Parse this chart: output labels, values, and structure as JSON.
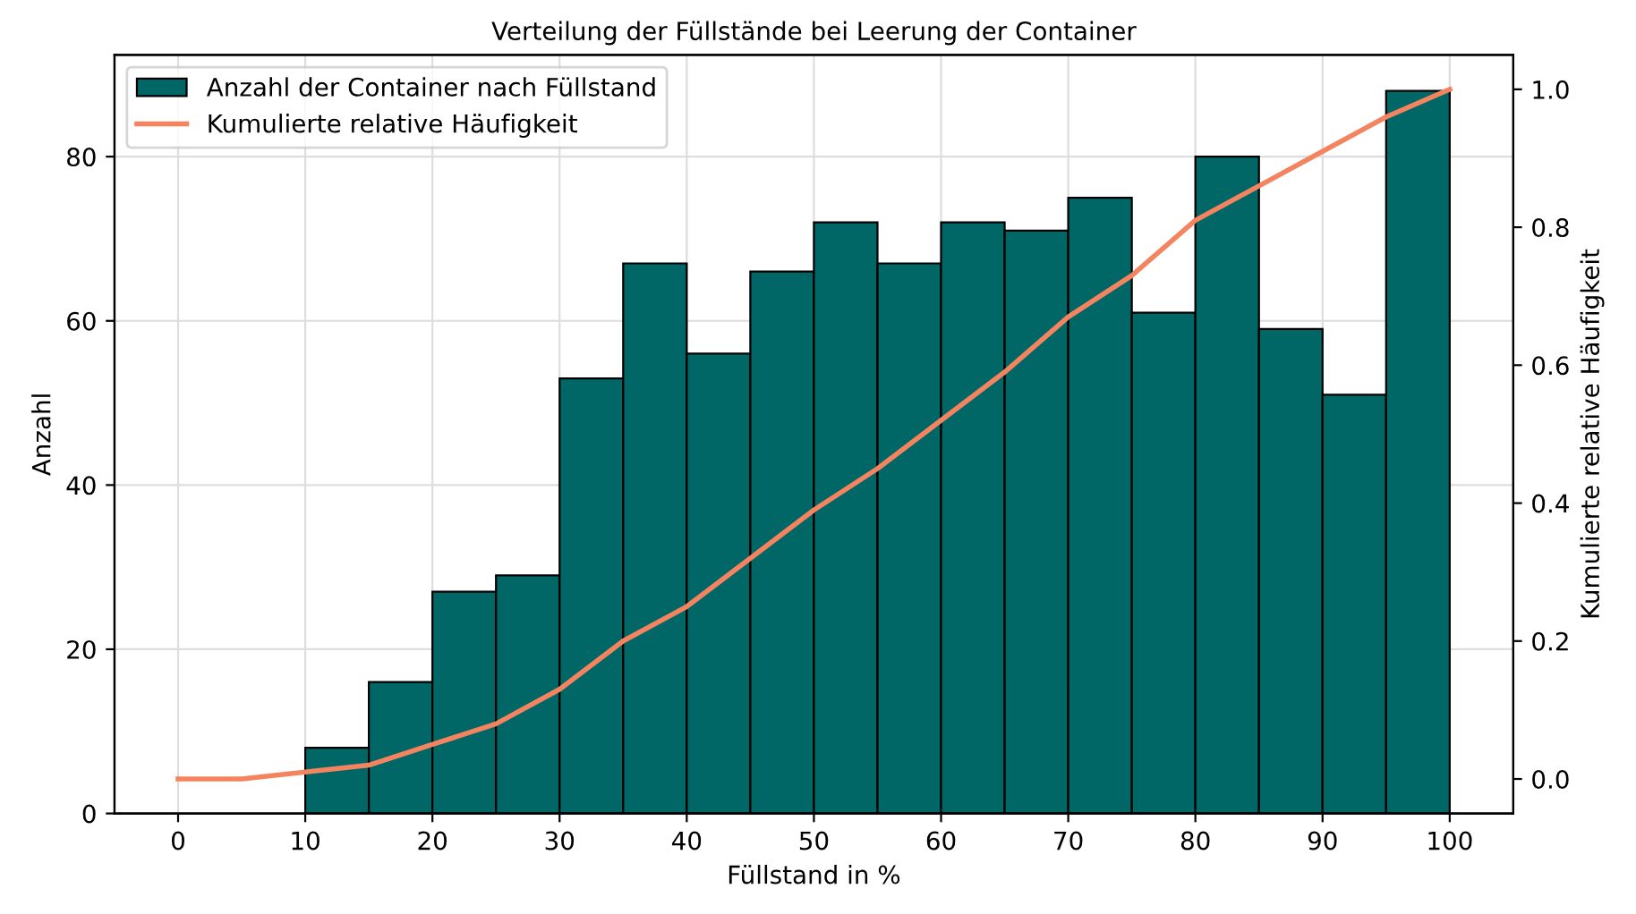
{
  "chart_data": {
    "type": "histogram",
    "title": "Verteilung der Füllstände bei Leerung der Container",
    "xlabel": "Füllstand in %",
    "ylabel": "Anzahl",
    "y2label": "Kumulierte relative Häufigkeit",
    "series": [
      {
        "type": "histogram",
        "name": "Anzahl der Container nach Füllstand",
        "color": "#006666",
        "bins": [
          10,
          15,
          20,
          25,
          30,
          35,
          40,
          45,
          50,
          55,
          60,
          65,
          70,
          75,
          80,
          85,
          90,
          95,
          100
        ],
        "values": [
          8,
          16,
          27,
          29,
          53,
          67,
          56,
          66,
          72,
          67,
          72,
          71,
          75,
          61,
          80,
          59,
          51,
          88
        ]
      },
      {
        "type": "line",
        "name": "Kumulierte relative Häufigkeit",
        "color": "#f4845f",
        "axis": "y2",
        "x": [
          0,
          5,
          10,
          15,
          20,
          25,
          30,
          35,
          40,
          45,
          50,
          55,
          60,
          65,
          70,
          75,
          80,
          85,
          90,
          95,
          100
        ],
        "values": [
          0,
          0,
          0.01,
          0.02,
          0.05,
          0.08,
          0.13,
          0.2,
          0.25,
          0.32,
          0.39,
          0.45,
          0.52,
          0.59,
          0.67,
          0.73,
          0.81,
          0.86,
          0.91,
          0.96,
          1.0
        ]
      }
    ],
    "xlim": [
      -5,
      105
    ],
    "xticks": [
      0,
      10,
      20,
      30,
      40,
      50,
      60,
      70,
      80,
      90,
      100
    ],
    "ylim": [
      0,
      92.4
    ],
    "yticks": [
      0,
      20,
      40,
      60,
      80
    ],
    "y2lim": [
      -0.05,
      1.05
    ],
    "y2ticks": [
      {
        "value": 0,
        "label": "0.0"
      },
      0.2,
      0.4,
      0.6,
      0.8,
      {
        "value": 1,
        "label": "1.0"
      }
    ],
    "grid": true,
    "legend": "top left"
  }
}
